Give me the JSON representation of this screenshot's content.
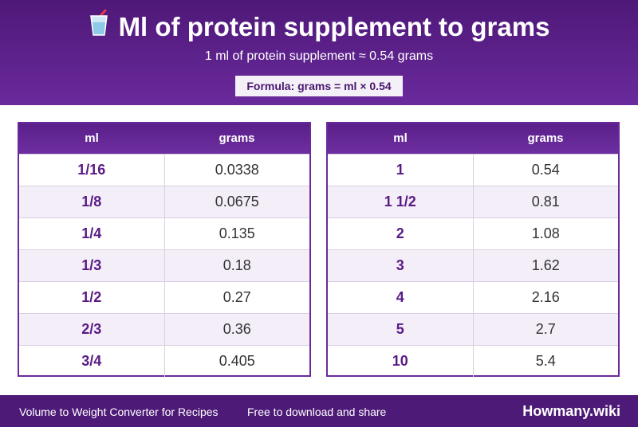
{
  "header": {
    "title": "Ml of protein supplement to grams",
    "title_icon": "cup-with-straw-icon",
    "subtitle": "1 ml of protein supplement ≈ 0.54 grams",
    "formula": "Formula: grams = ml × 0.54"
  },
  "tables": [
    {
      "col_ml": "ml",
      "col_grams": "grams",
      "rows": [
        {
          "ml": "1/16",
          "grams": "0.0338"
        },
        {
          "ml": "1/8",
          "grams": "0.0675"
        },
        {
          "ml": "1/4",
          "grams": "0.135"
        },
        {
          "ml": "1/3",
          "grams": "0.18"
        },
        {
          "ml": "1/2",
          "grams": "0.27"
        },
        {
          "ml": "2/3",
          "grams": "0.36"
        },
        {
          "ml": "3/4",
          "grams": "0.405"
        }
      ]
    },
    {
      "col_ml": "ml",
      "col_grams": "grams",
      "rows": [
        {
          "ml": "1",
          "grams": "0.54"
        },
        {
          "ml": "1 1/2",
          "grams": "0.81"
        },
        {
          "ml": "2",
          "grams": "1.08"
        },
        {
          "ml": "3",
          "grams": "1.62"
        },
        {
          "ml": "4",
          "grams": "2.16"
        },
        {
          "ml": "5",
          "grams": "2.7"
        },
        {
          "ml": "10",
          "grams": "5.4"
        }
      ]
    }
  ],
  "footer": {
    "left_text": "Volume to Weight Converter for Recipes",
    "middle_text": "Free to download and share",
    "brand": "Howmany.wiki"
  },
  "colors": {
    "header_purple": "#5a1f8a",
    "ml_text": "#5a1a86",
    "row_alt": "#f3eef8"
  }
}
